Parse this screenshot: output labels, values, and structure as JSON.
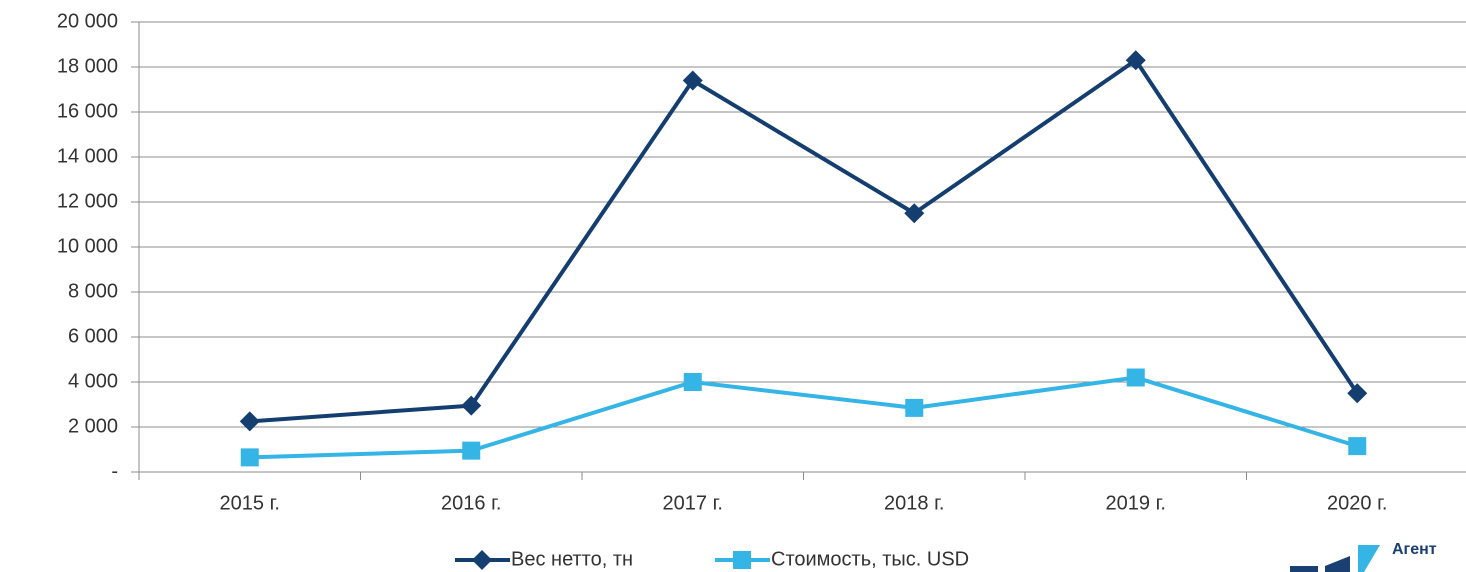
{
  "chart_data": {
    "type": "line",
    "categories": [
      "2015 г.",
      "2016 г.",
      "2017 г.",
      "2018 г.",
      "2019 г.",
      "2020 г."
    ],
    "series": [
      {
        "name": "Вес нетто, тн",
        "color": "#143e70",
        "marker": "diamond",
        "values": [
          2250,
          2950,
          17400,
          11500,
          18300,
          3500
        ]
      },
      {
        "name": "Стоимость, тыс. USD",
        "color": "#35b4e6",
        "marker": "square",
        "values": [
          650,
          950,
          4000,
          2850,
          4200,
          1150
        ]
      }
    ],
    "ylim": [
      0,
      20000
    ],
    "yticks": [
      {
        "value": 0,
        "label": "-"
      },
      {
        "value": 2000,
        "label": "2 000"
      },
      {
        "value": 4000,
        "label": "4 000"
      },
      {
        "value": 6000,
        "label": "6 000"
      },
      {
        "value": 8000,
        "label": "8 000"
      },
      {
        "value": 10000,
        "label": "10 000"
      },
      {
        "value": 12000,
        "label": "12 000"
      },
      {
        "value": 14000,
        "label": "14 000"
      },
      {
        "value": 16000,
        "label": "16 000"
      },
      {
        "value": 18000,
        "label": "18 000"
      },
      {
        "value": 20000,
        "label": "20 000"
      }
    ],
    "grid": true,
    "legend": "bottom"
  },
  "logo": {
    "text": "Агент"
  }
}
